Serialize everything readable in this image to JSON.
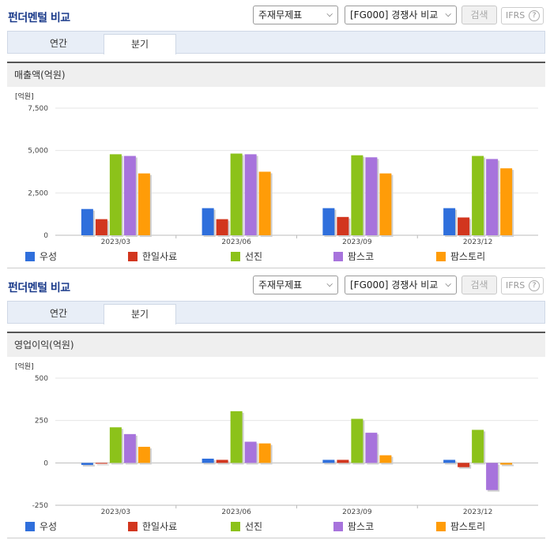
{
  "colors": {
    "series": [
      "#2f6fdc",
      "#d2361e",
      "#8cc21a",
      "#a773dc",
      "#ff9c08"
    ]
  },
  "panels": [
    {
      "title": "펀더멘털 비교",
      "select_a": "주재무제표",
      "select_b": "[FG000] 경쟁사 비교",
      "search_label": "검색",
      "ifrs_label": "IFRS",
      "ifrs_help": "?",
      "tabs": [
        "연간",
        "분기"
      ],
      "active_tab": 1,
      "chart_title": "매출액(억원)"
    },
    {
      "title": "펀더멘털 비교",
      "select_a": "주재무제표",
      "select_b": "[FG000] 경쟁사 비교",
      "search_label": "검색",
      "ifrs_label": "IFRS",
      "ifrs_help": "?",
      "tabs": [
        "연간",
        "분기"
      ],
      "active_tab": 1,
      "chart_title": "영업이익(억원)"
    }
  ],
  "chart_data": [
    {
      "type": "bar",
      "title": "매출액(억원)",
      "unit_label": "[억원]",
      "categories": [
        "2023/03",
        "2023/06",
        "2023/09",
        "2023/12"
      ],
      "ylim": [
        0,
        7500
      ],
      "yticks": [
        0,
        2500,
        5000,
        7500
      ],
      "ytick_labels": [
        "0",
        "2,500",
        "5,000",
        "7,500"
      ],
      "series": [
        {
          "name": "우성",
          "values": [
            1550,
            1600,
            1600,
            1600
          ]
        },
        {
          "name": "한일사료",
          "values": [
            950,
            950,
            1080,
            1050
          ]
        },
        {
          "name": "선진",
          "values": [
            4780,
            4820,
            4720,
            4680
          ]
        },
        {
          "name": "팜스코",
          "values": [
            4680,
            4780,
            4600,
            4500
          ]
        },
        {
          "name": "팜스토리",
          "values": [
            3650,
            3750,
            3650,
            3950
          ]
        }
      ]
    },
    {
      "type": "bar",
      "title": "영업이익(억원)",
      "unit_label": "[억원]",
      "categories": [
        "2023/03",
        "2023/06",
        "2023/09",
        "2023/12"
      ],
      "ylim": [
        -250,
        500
      ],
      "yticks": [
        -250,
        0,
        250,
        500
      ],
      "ytick_labels": [
        "-250",
        "0",
        "250",
        "500"
      ],
      "series": [
        {
          "name": "우성",
          "values": [
            -12,
            25,
            18,
            18
          ]
        },
        {
          "name": "한일사료",
          "values": [
            -5,
            18,
            18,
            -25
          ]
        },
        {
          "name": "선진",
          "values": [
            210,
            305,
            260,
            195
          ]
        },
        {
          "name": "팜스코",
          "values": [
            170,
            125,
            178,
            -160
          ]
        },
        {
          "name": "팜스토리",
          "values": [
            95,
            115,
            45,
            -10
          ]
        }
      ]
    }
  ]
}
